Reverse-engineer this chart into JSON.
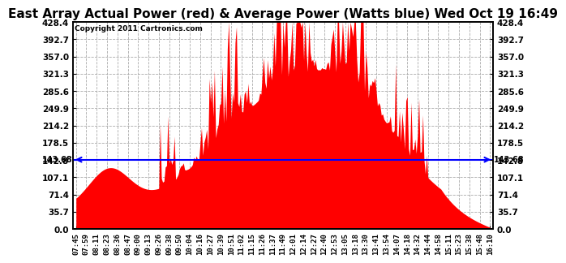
{
  "title": "East Array Actual Power (red) & Average Power (Watts blue) Wed Oct 19 16:49",
  "copyright_text": "Copyright 2011 Cartronics.com",
  "avg_power": 143.68,
  "ymin": 0.0,
  "ymax": 428.4,
  "ytick_step": 35.7,
  "bg_color": "#ffffff",
  "plot_bg_color": "#ffffff",
  "bar_color": "#ff0000",
  "avg_line_color": "#0000ff",
  "grid_color": "#aaaaaa",
  "title_fontsize": 11,
  "xlabel_fontsize": 6.5,
  "ylabel_fontsize": 7.5,
  "x_labels": [
    "07:45",
    "07:59",
    "08:11",
    "08:23",
    "08:36",
    "08:47",
    "09:00",
    "09:13",
    "09:26",
    "09:38",
    "09:50",
    "10:04",
    "10:16",
    "10:27",
    "10:39",
    "10:51",
    "11:02",
    "11:15",
    "11:26",
    "11:37",
    "11:49",
    "12:01",
    "12:14",
    "12:27",
    "12:40",
    "12:53",
    "13:05",
    "13:18",
    "13:30",
    "13:41",
    "13:54",
    "14:07",
    "14:18",
    "14:32",
    "14:44",
    "14:58",
    "15:11",
    "15:23",
    "15:38",
    "15:48",
    "16:10"
  ],
  "seed": 12345
}
